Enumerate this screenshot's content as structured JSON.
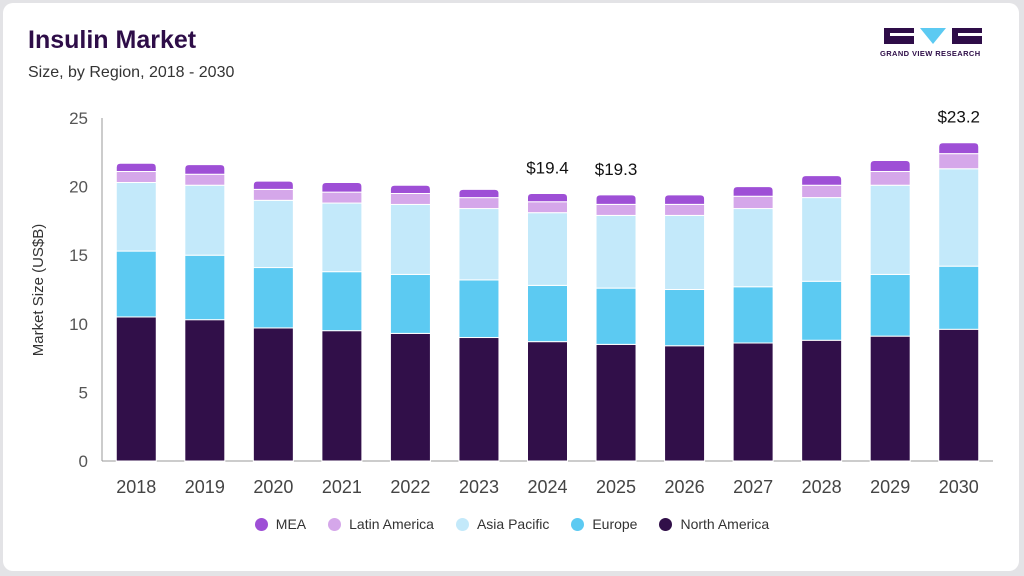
{
  "header": {
    "title": "Insulin Market",
    "subtitle": "Size, by Region, 2018 - 2030"
  },
  "logo": {
    "text": "GRAND VIEW RESEARCH"
  },
  "chart_data": {
    "type": "bar",
    "stacked": true,
    "title": "Insulin Market",
    "subtitle": "Size, by Region, 2018 - 2030",
    "xlabel": "",
    "ylabel": "Market Size (US$B)",
    "ylim": [
      0,
      25
    ],
    "yticks": [
      "0",
      "5",
      "10",
      "15",
      "20",
      "25"
    ],
    "categories": [
      "2018",
      "2019",
      "2020",
      "2021",
      "2022",
      "2023",
      "2024",
      "2025",
      "2026",
      "2027",
      "2028",
      "2029",
      "2030"
    ],
    "series": [
      {
        "name": "North America",
        "color": "#310f49",
        "values": [
          10.5,
          10.3,
          9.7,
          9.5,
          9.3,
          9.0,
          8.7,
          8.5,
          8.4,
          8.6,
          8.8,
          9.1,
          9.6
        ]
      },
      {
        "name": "Europe",
        "color": "#5ccaf2",
        "values": [
          4.8,
          4.7,
          4.4,
          4.3,
          4.3,
          4.2,
          4.1,
          4.1,
          4.1,
          4.1,
          4.3,
          4.5,
          4.6
        ]
      },
      {
        "name": "Asia Pacific",
        "color": "#c3e9fa",
        "values": [
          5.0,
          5.1,
          4.9,
          5.0,
          5.1,
          5.2,
          5.3,
          5.3,
          5.4,
          5.7,
          6.1,
          6.5,
          7.1
        ]
      },
      {
        "name": "Latin America",
        "color": "#d5a7ea",
        "values": [
          0.8,
          0.8,
          0.8,
          0.8,
          0.8,
          0.8,
          0.8,
          0.8,
          0.8,
          0.9,
          0.9,
          1.0,
          1.1
        ]
      },
      {
        "name": "MEA",
        "color": "#9e4fd6",
        "values": [
          0.6,
          0.7,
          0.6,
          0.7,
          0.6,
          0.6,
          0.6,
          0.7,
          0.7,
          0.7,
          0.7,
          0.8,
          0.8
        ]
      }
    ],
    "data_labels": [
      {
        "category": "2024",
        "text": "$19.4"
      },
      {
        "category": "2025",
        "text": "$19.3"
      },
      {
        "category": "2030",
        "text": "$23.2"
      }
    ],
    "legend": {
      "position": "bottom",
      "order": [
        "MEA",
        "Latin America",
        "Asia Pacific",
        "Europe",
        "North America"
      ]
    },
    "grid": false
  }
}
